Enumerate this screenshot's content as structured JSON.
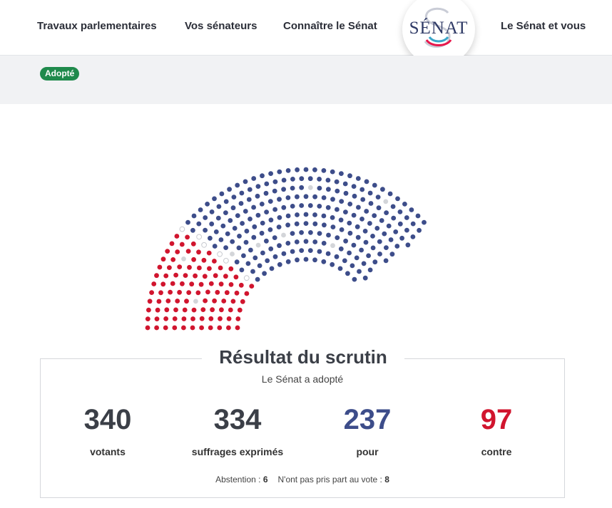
{
  "nav": {
    "item1": "Travaux parlementaires",
    "item2": "Vos sénateurs",
    "item3": "Connaître le Sénat",
    "item4": "Le Sénat et vous"
  },
  "logo": {
    "text": "SÉNAT",
    "icon": "senat-logo-icon"
  },
  "status": {
    "badge": "Adopté"
  },
  "colors": {
    "pour": "#3d4d8a",
    "contre": "#d1152e",
    "abstention": "#ffffff",
    "non_participant": "#d3d5d9",
    "badge": "#1f8a4c"
  },
  "result": {
    "title": "Résultat du scrutin",
    "subtitle": "Le Sénat a adopté",
    "votants_value": "340",
    "votants_label": "votants",
    "suffrages_value": "334",
    "suffrages_label": "suffrages exprimés",
    "pour_value": "237",
    "pour_label": "pour",
    "contre_value": "97",
    "contre_label": "contre",
    "abstention_label": "Abstention : ",
    "abstention_value": "6",
    "non_pris_label": "N'ont pas pris part au vote : ",
    "non_pris_value": "8"
  }
}
